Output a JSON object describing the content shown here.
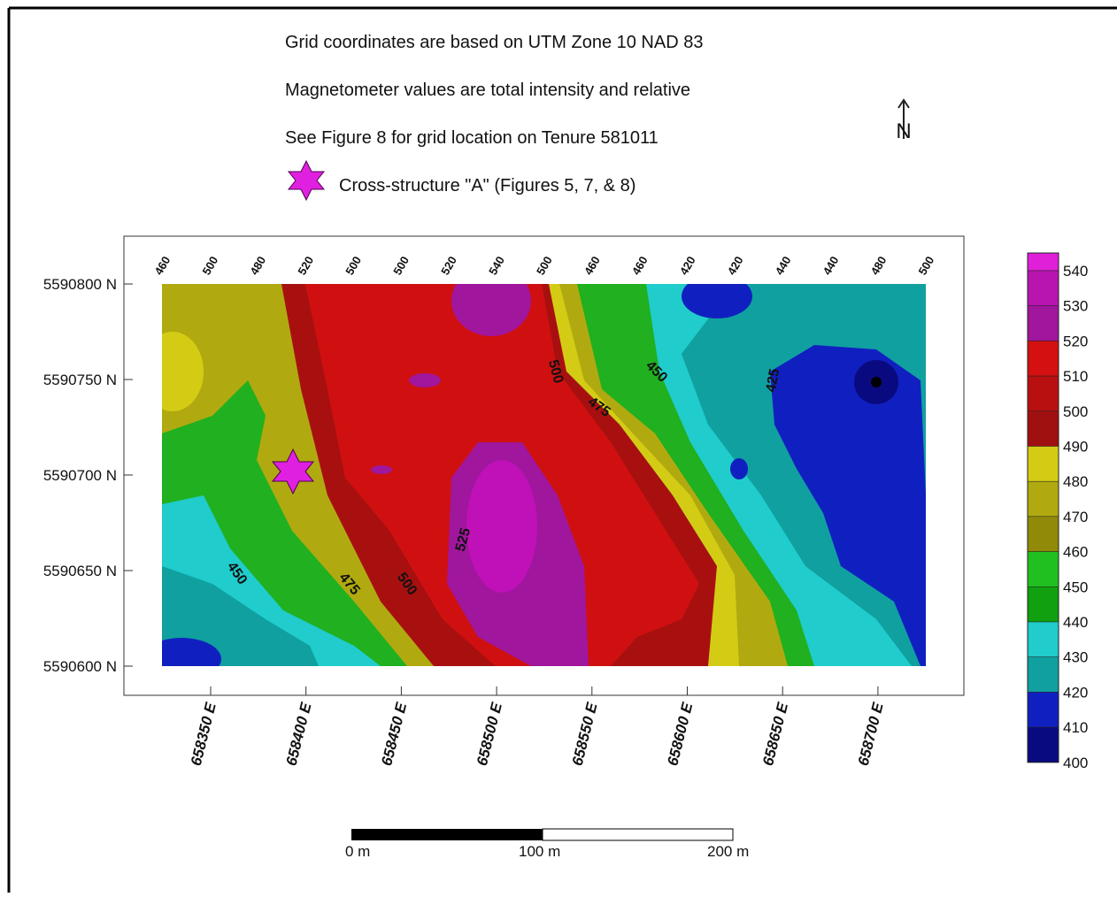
{
  "notes": [
    "Grid coordinates are based on UTM Zone 10 NAD 83",
    "Magnetometer values are total intensity and relative",
    "See Figure 8 for grid location on Tenure 581011"
  ],
  "symbol_note": "Cross-structure \"A\" (Figures 5, 7, & 8)",
  "north": "N",
  "map": {
    "top_labels": [
      "460",
      "500",
      "480",
      "520",
      "500",
      "500",
      "520",
      "540",
      "500",
      "460",
      "460",
      "420",
      "420",
      "440",
      "440",
      "480",
      "500"
    ],
    "y_labels": [
      "5590800 N",
      "5590750 N",
      "5590700 N",
      "5590650 N",
      "5590600 N"
    ],
    "x_labels": [
      "658350 E",
      "658400 E",
      "658450 E",
      "658500 E",
      "658550 E",
      "658600 E",
      "658650 E",
      "658700 E"
    ],
    "contour_labels": [
      "450",
      "475",
      "500",
      "525",
      "500",
      "475",
      "450",
      "425"
    ]
  },
  "legend": [
    {
      "value": 540,
      "color": "#e020d8"
    },
    {
      "value": 530,
      "color": "#b814b0"
    },
    {
      "value": 520,
      "color": "#a0169c"
    },
    {
      "value": 510,
      "color": "#d41010"
    },
    {
      "value": 500,
      "color": "#b81010"
    },
    {
      "value": 490,
      "color": "#a01010"
    },
    {
      "value": 480,
      "color": "#d4cc14"
    },
    {
      "value": 470,
      "color": "#b0aa10"
    },
    {
      "value": 460,
      "color": "#908a08"
    },
    {
      "value": 450,
      "color": "#20c020"
    },
    {
      "value": 440,
      "color": "#10a010"
    },
    {
      "value": 430,
      "color": "#20cccc"
    },
    {
      "value": 420,
      "color": "#10a0a0"
    },
    {
      "value": 410,
      "color": "#1020c0"
    },
    {
      "value": 400,
      "color": "#0a0a80"
    }
  ],
  "scale_bar": [
    "0 m",
    "100 m",
    "200 m"
  ]
}
